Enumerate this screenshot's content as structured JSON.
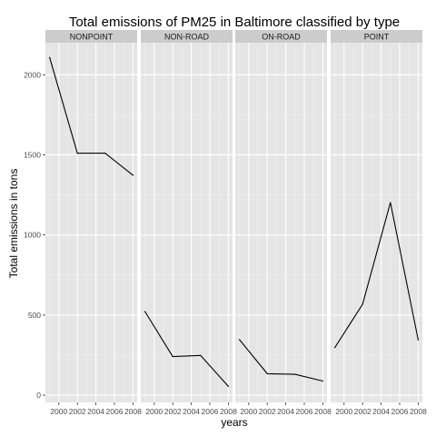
{
  "chart_data": {
    "type": "line",
    "title": "Total emissions of PM25 in Baltimore classified by type",
    "xlabel": "years",
    "ylabel": "Total emissions in tons",
    "x": [
      1999,
      2002,
      2005,
      2008
    ],
    "xticks": [
      2000,
      2002,
      2004,
      2006,
      2008
    ],
    "xtick_labels": [
      "2000",
      "2002",
      "2004",
      "2006",
      "2008"
    ],
    "xlim": [
      1998.55,
      2008.45
    ],
    "yticks": [
      0,
      500,
      1000,
      1500,
      2000
    ],
    "ytick_labels": [
      "0",
      "500",
      "1000",
      "1500",
      "2000"
    ],
    "ylim": [
      -45,
      2200
    ],
    "grid": true,
    "colors": {
      "panel_bg": "#e5e5e5",
      "grid_major": "#ffffff",
      "grid_minor": "#f2f2f2",
      "strip_bg": "#cccccc",
      "line": "#000000"
    },
    "panels": [
      {
        "name": "NONPOINT",
        "values": [
          2108,
          1510,
          1510,
          1373
        ]
      },
      {
        "name": "NON-ROAD",
        "values": [
          522,
          241,
          248,
          55
        ]
      },
      {
        "name": "ON-ROAD",
        "values": [
          347,
          134,
          130,
          88
        ]
      },
      {
        "name": "POINT",
        "values": [
          297,
          568,
          1202,
          345
        ]
      }
    ]
  }
}
